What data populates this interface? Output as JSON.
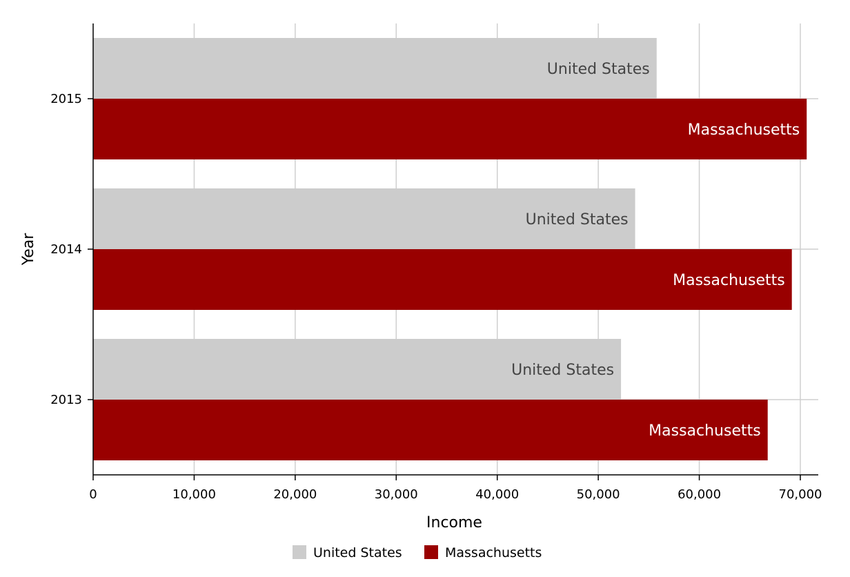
{
  "chart_data": {
    "type": "bar",
    "orientation": "horizontal",
    "categories": [
      "2013",
      "2014",
      "2015"
    ],
    "series": [
      {
        "name": "United States",
        "color": "#cccccc",
        "label_color": "#444444",
        "values": [
          52250,
          53650,
          55780
        ]
      },
      {
        "name": "Massachusetts",
        "color": "#990000",
        "label_color": "#ffffff",
        "values": [
          66770,
          69160,
          70630
        ]
      }
    ],
    "xlabel": "Income",
    "ylabel": "Year",
    "xlim": [
      0,
      72000
    ],
    "xticks": [
      0,
      10000,
      20000,
      30000,
      40000,
      50000,
      60000,
      70000
    ],
    "xtick_labels": [
      "0",
      "10,000",
      "20,000",
      "30,000",
      "40,000",
      "50,000",
      "60,000",
      "70,000"
    ],
    "grid": true,
    "legend_position": "bottom-center"
  }
}
